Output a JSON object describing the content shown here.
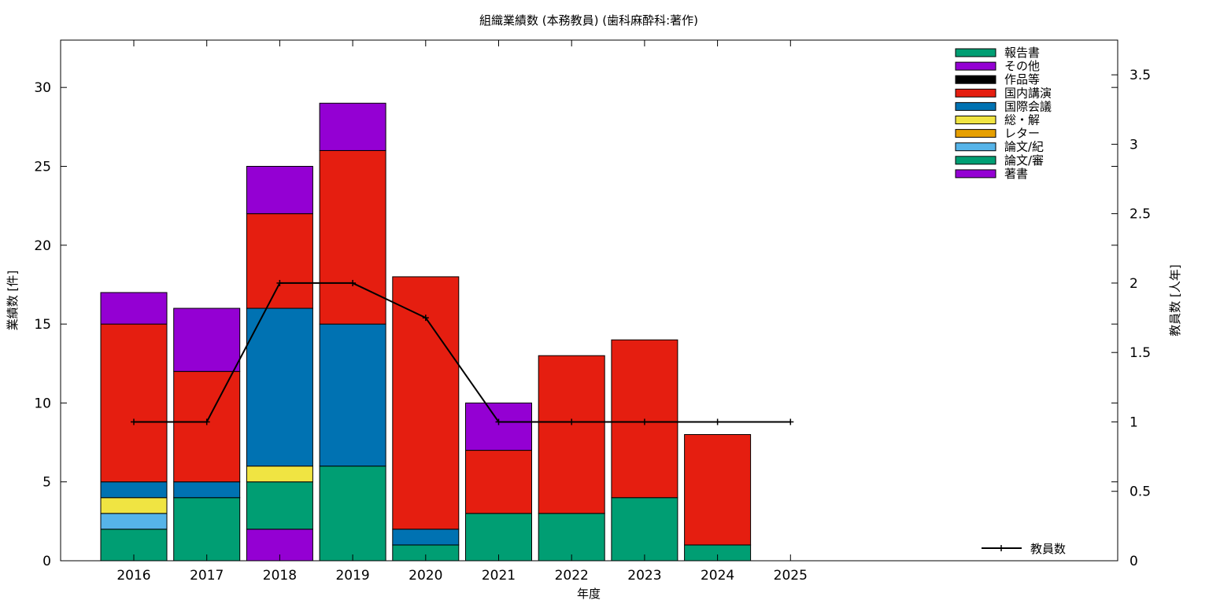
{
  "chart_data": {
    "type": "bar",
    "title": "組織業績数 (本務教員) (歯科麻酔科:著作)",
    "xlabel": "年度",
    "ylabel": "業績数 [件]",
    "y2label": "教員数 [人年]",
    "categories": [
      "2016",
      "2017",
      "2018",
      "2019",
      "2020",
      "2021",
      "2022",
      "2023",
      "2024",
      "2025"
    ],
    "ylim": [
      0,
      33
    ],
    "y2lim": [
      0,
      3.75
    ],
    "yticks": [
      0,
      5,
      10,
      15,
      20,
      25,
      30
    ],
    "y2ticks": [
      "0",
      "0.5",
      "1",
      "1.5",
      "2",
      "2.5",
      "3",
      "3.5"
    ],
    "stacked": true,
    "series": [
      {
        "name": "著書",
        "color": "#9400d3",
        "values": [
          0,
          0,
          2,
          0,
          0,
          0,
          0,
          0,
          0,
          0
        ]
      },
      {
        "name": "論文/審",
        "color": "#009e73",
        "values": [
          2,
          4,
          3,
          6,
          1,
          3,
          3,
          4,
          1,
          0
        ]
      },
      {
        "name": "論文/紀",
        "color": "#56b4e9",
        "values": [
          1,
          0,
          0,
          0,
          0,
          0,
          0,
          0,
          0,
          0
        ]
      },
      {
        "name": "レター",
        "color": "#e69f00",
        "values": [
          0,
          0,
          0,
          0,
          0,
          0,
          0,
          0,
          0,
          0
        ]
      },
      {
        "name": "総・解",
        "color": "#f0e442",
        "values": [
          1,
          0,
          1,
          0,
          0,
          0,
          0,
          0,
          0,
          0
        ]
      },
      {
        "name": "国際会議",
        "color": "#0072b2",
        "values": [
          1,
          1,
          10,
          9,
          1,
          0,
          0,
          0,
          0,
          0
        ]
      },
      {
        "name": "国内講演",
        "color": "#e51e10",
        "values": [
          10,
          7,
          6,
          11,
          16,
          4,
          10,
          10,
          7,
          0
        ]
      },
      {
        "name": "作品等",
        "color": "#000000",
        "values": [
          0,
          0,
          0,
          0,
          0,
          0,
          0,
          0,
          0,
          0
        ]
      },
      {
        "name": "その他",
        "color": "#9400d3",
        "values": [
          2,
          4,
          3,
          3,
          0,
          3,
          0,
          0,
          0,
          0
        ]
      },
      {
        "name": "報告書",
        "color": "#009e73",
        "values": [
          0,
          0,
          0,
          0,
          0,
          0,
          0,
          0,
          0,
          0
        ]
      }
    ],
    "line_series": {
      "name": "教員数",
      "color": "#000000",
      "values": [
        1,
        1,
        2,
        2,
        1.75,
        1,
        1,
        1,
        1,
        1
      ]
    },
    "legend_order": [
      "報告書",
      "その他",
      "作品等",
      "国内講演",
      "国際会議",
      "総・解",
      "レター",
      "論文/紀",
      "論文/審",
      "著書"
    ],
    "legend_position": "top-right",
    "grid": false
  }
}
